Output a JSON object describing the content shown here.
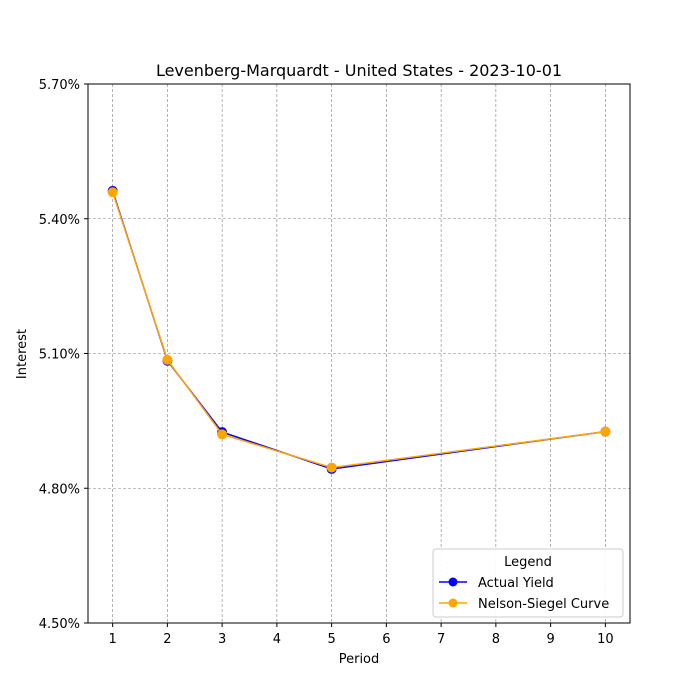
{
  "chart_data": {
    "type": "line",
    "title": "Levenberg-Marquardt - United States - 2023-10-01",
    "xlabel": "Period",
    "ylabel": "Interest",
    "x_ticks": [
      1,
      2,
      3,
      4,
      5,
      6,
      7,
      8,
      9,
      10
    ],
    "y_ticks": [
      4.5,
      4.8,
      5.1,
      5.4,
      5.7
    ],
    "y_tick_labels": [
      "4.50%",
      "4.80%",
      "5.10%",
      "5.40%",
      "5.70%"
    ],
    "xlim": [
      0.55,
      10.45
    ],
    "ylim": [
      4.5,
      5.7
    ],
    "grid": true,
    "legend": {
      "title": "Legend",
      "placement": "lower-right"
    },
    "x": [
      1,
      2,
      3,
      5,
      10
    ],
    "series": [
      {
        "name": "Actual Yield",
        "color": "#0000ff",
        "marker": "circle",
        "values": [
          5.462,
          5.084,
          4.925,
          4.843,
          4.926
        ]
      },
      {
        "name": "Nelson-Siegel Curve",
        "color": "#ffa500",
        "marker": "circle",
        "values": [
          5.459,
          5.086,
          4.92,
          4.846,
          4.926
        ]
      }
    ]
  }
}
